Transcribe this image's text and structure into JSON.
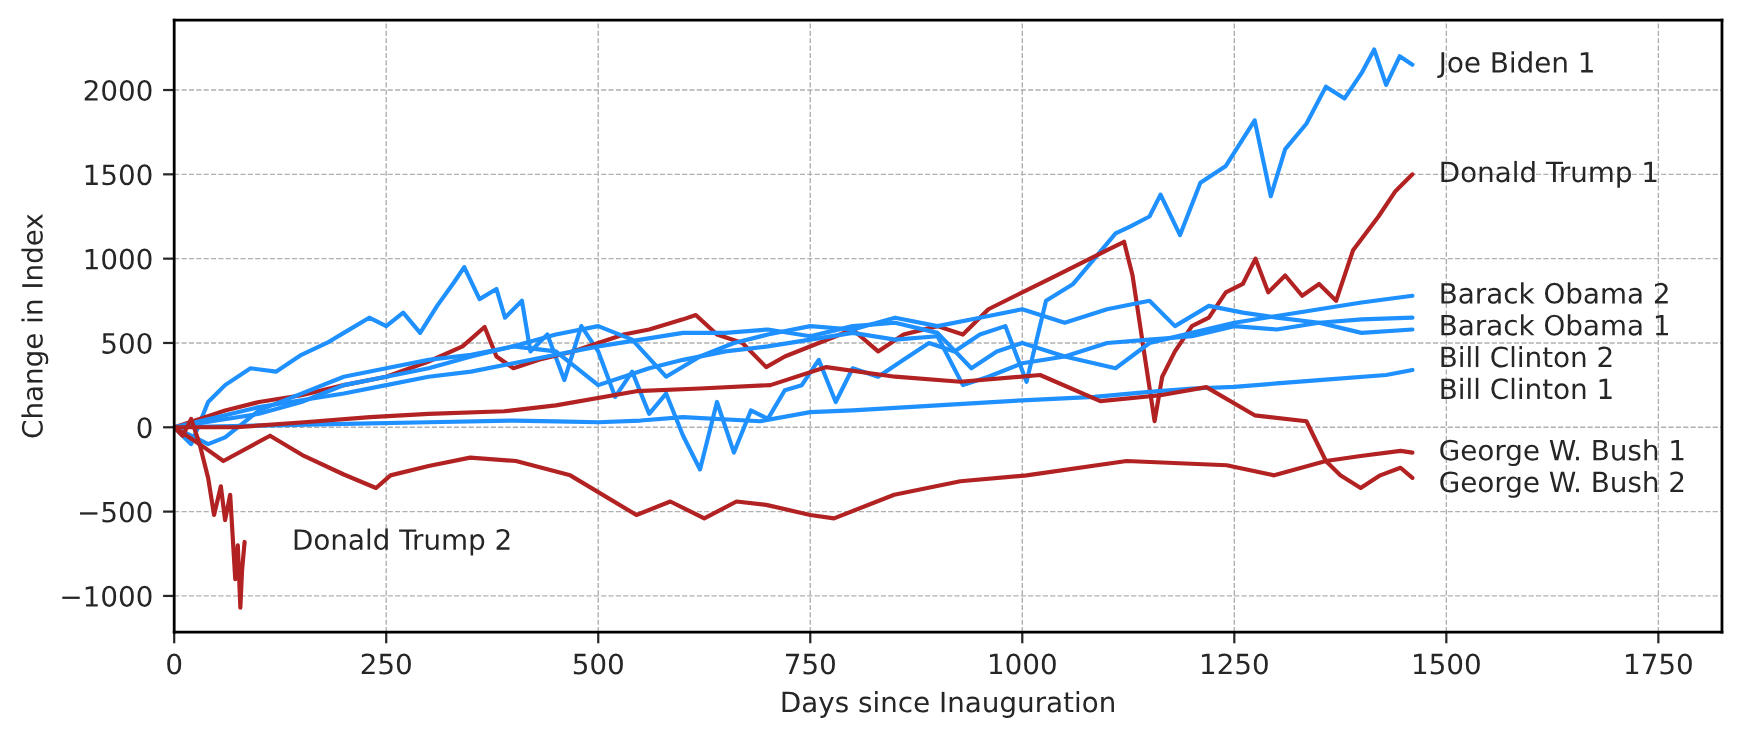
{
  "chart_data": {
    "type": "line",
    "xlabel": "Days since Inauguration",
    "ylabel": "Change in Index",
    "xlim": [
      0,
      1825
    ],
    "ylim": [
      -1215,
      2415
    ],
    "xticks": [
      0,
      250,
      500,
      750,
      1000,
      1250,
      1500,
      1750
    ],
    "yticks": [
      {
        "value": -1000,
        "label": "−1000"
      },
      {
        "value": -500,
        "label": "−500"
      },
      0,
      500,
      1000,
      1500,
      2000
    ],
    "grid": true,
    "legend": false,
    "line_style": "solid",
    "marker": "none",
    "series": [
      {
        "name": "Joe Biden 1",
        "color": "#1e90ff",
        "x": [
          0,
          20,
          40,
          60,
          90,
          120,
          150,
          180,
          200,
          230,
          250,
          270,
          290,
          310,
          330,
          342,
          360,
          380,
          390,
          410,
          420,
          440,
          460,
          480,
          500,
          520,
          540,
          560,
          580,
          600,
          620,
          640,
          660,
          680,
          700,
          720,
          740,
          760,
          780,
          800,
          830,
          860,
          890,
          920,
          950,
          980,
          1005,
          1028,
          1060,
          1085,
          1110,
          1127,
          1150,
          1163,
          1186,
          1210,
          1240,
          1274,
          1293,
          1310,
          1335,
          1358,
          1380,
          1400,
          1415,
          1429,
          1445,
          1460
        ],
        "values": [
          0,
          -100,
          150,
          250,
          350,
          330,
          430,
          500,
          560,
          650,
          600,
          680,
          560,
          720,
          860,
          950,
          760,
          820,
          650,
          750,
          450,
          550,
          280,
          600,
          450,
          180,
          330,
          80,
          200,
          -50,
          -250,
          150,
          -150,
          100,
          50,
          220,
          250,
          400,
          150,
          350,
          300,
          400,
          500,
          450,
          550,
          600,
          270,
          750,
          850,
          1000,
          1150,
          1190,
          1250,
          1380,
          1140,
          1450,
          1550,
          1820,
          1370,
          1650,
          1800,
          2020,
          1950,
          2100,
          2240,
          2030,
          2200,
          2150
        ]
      },
      {
        "name": "Donald Trump 1",
        "color": "#b22222",
        "x": [
          0,
          30,
          60,
          100,
          150,
          200,
          250,
          300,
          340,
          366,
          380,
          400,
          430,
          470,
          500,
          530,
          560,
          600,
          615,
          640,
          670,
          698,
          720,
          760,
          800,
          830,
          860,
          900,
          930,
          960,
          1000,
          1040,
          1080,
          1100,
          1120,
          1130,
          1145,
          1156,
          1165,
          1180,
          1200,
          1220,
          1240,
          1260,
          1275,
          1290,
          1310,
          1330,
          1350,
          1370,
          1390,
          1420,
          1440,
          1460
        ],
        "values": [
          0,
          50,
          100,
          150,
          190,
          250,
          300,
          390,
          480,
          595,
          420,
          350,
          400,
          450,
          500,
          550,
          580,
          640,
          666,
          550,
          500,
          357,
          420,
          500,
          580,
          450,
          550,
          600,
          550,
          700,
          800,
          900,
          1000,
          1050,
          1100,
          900,
          400,
          36,
          300,
          450,
          600,
          650,
          800,
          850,
          1000,
          800,
          900,
          780,
          850,
          750,
          1050,
          1250,
          1400,
          1500
        ]
      },
      {
        "name": "Barack Obama 2",
        "color": "#1e90ff",
        "x": [
          0,
          50,
          100,
          150,
          200,
          250,
          300,
          350,
          400,
          450,
          500,
          550,
          600,
          650,
          700,
          750,
          800,
          850,
          900,
          940,
          970,
          1000,
          1050,
          1110,
          1150,
          1200,
          1250,
          1300,
          1350,
          1400,
          1460
        ],
        "values": [
          0,
          60,
          120,
          160,
          200,
          250,
          300,
          330,
          380,
          430,
          480,
          520,
          560,
          560,
          580,
          540,
          600,
          620,
          560,
          350,
          450,
          500,
          420,
          350,
          500,
          560,
          620,
          660,
          700,
          740,
          780
        ]
      },
      {
        "name": "Barack Obama 1",
        "color": "#1e90ff",
        "x": [
          0,
          20,
          40,
          60,
          100,
          150,
          200,
          250,
          300,
          350,
          400,
          450,
          500,
          530,
          560,
          600,
          650,
          700,
          750,
          800,
          850,
          900,
          930,
          960,
          1000,
          1050,
          1100,
          1150,
          1200,
          1250,
          1300,
          1350,
          1400,
          1460
        ],
        "values": [
          0,
          -50,
          -100,
          -60,
          100,
          200,
          300,
          350,
          400,
          430,
          480,
          450,
          250,
          300,
          350,
          400,
          450,
          480,
          520,
          560,
          520,
          540,
          250,
          300,
          380,
          420,
          500,
          520,
          540,
          600,
          580,
          620,
          640,
          650
        ]
      },
      {
        "name": "Bill Clinton 2",
        "color": "#1e90ff",
        "x": [
          0,
          50,
          100,
          150,
          200,
          250,
          300,
          350,
          400,
          450,
          500,
          540,
          580,
          620,
          660,
          700,
          750,
          800,
          850,
          900,
          950,
          1000,
          1050,
          1100,
          1150,
          1180,
          1220,
          1260,
          1300,
          1350,
          1400,
          1460
        ],
        "values": [
          0,
          40,
          80,
          150,
          250,
          300,
          350,
          420,
          480,
          550,
          600,
          520,
          300,
          420,
          500,
          550,
          600,
          580,
          650,
          600,
          650,
          700,
          620,
          700,
          750,
          600,
          720,
          680,
          650,
          620,
          560,
          580
        ]
      },
      {
        "name": "Bill Clinton 1",
        "color": "#1e90ff",
        "x": [
          0,
          100,
          200,
          300,
          400,
          450,
          500,
          550,
          600,
          691,
          750,
          800,
          900,
          1000,
          1085,
          1150,
          1200,
          1250,
          1300,
          1350,
          1429,
          1460
        ],
        "values": [
          0,
          10,
          20,
          30,
          40,
          35,
          30,
          40,
          60,
          36,
          90,
          100,
          130,
          160,
          180,
          210,
          230,
          240,
          260,
          280,
          310,
          340
        ]
      },
      {
        "name": "George W. Bush 1",
        "color": "#b22222",
        "x": [
          0,
          30,
          58,
          113,
          153,
          200,
          238,
          255,
          300,
          349,
          403,
          467,
          545,
          585,
          625,
          663,
          698,
          750,
          778,
          849,
          927,
          1005,
          1123,
          1241,
          1297,
          1358,
          1399,
          1446,
          1460
        ],
        "values": [
          0,
          -100,
          -200,
          -50,
          -170,
          -280,
          -360,
          -285,
          -230,
          -180,
          -200,
          -285,
          -520,
          -440,
          -540,
          -440,
          -460,
          -520,
          -540,
          -400,
          -320,
          -285,
          -200,
          -225,
          -285,
          -200,
          -170,
          -140,
          -150
        ]
      },
      {
        "name": "George W. Bush 2",
        "color": "#b22222",
        "x": [
          0,
          73,
          153,
          231,
          300,
          389,
          450,
          545,
          620,
          703,
          769,
          850,
          927,
          1021,
          1092,
          1163,
          1217,
          1274,
          1335,
          1358,
          1375,
          1399,
          1422,
          1446,
          1460
        ],
        "values": [
          0,
          0,
          30,
          60,
          80,
          95,
          130,
          214,
          230,
          250,
          357,
          300,
          270,
          310,
          155,
          190,
          238,
          71,
          36,
          -200,
          -285,
          -360,
          -285,
          -240,
          -300
        ]
      },
      {
        "name": "Donald Trump 2",
        "color": "#b22222",
        "x": [
          0,
          10,
          20,
          30,
          40,
          47,
          55,
          60,
          66,
          72,
          75,
          78,
          80,
          83
        ],
        "values": [
          0,
          -50,
          50,
          -100,
          -300,
          -520,
          -350,
          -550,
          -400,
          -900,
          -700,
          -1070,
          -850,
          -680
        ]
      }
    ]
  }
}
